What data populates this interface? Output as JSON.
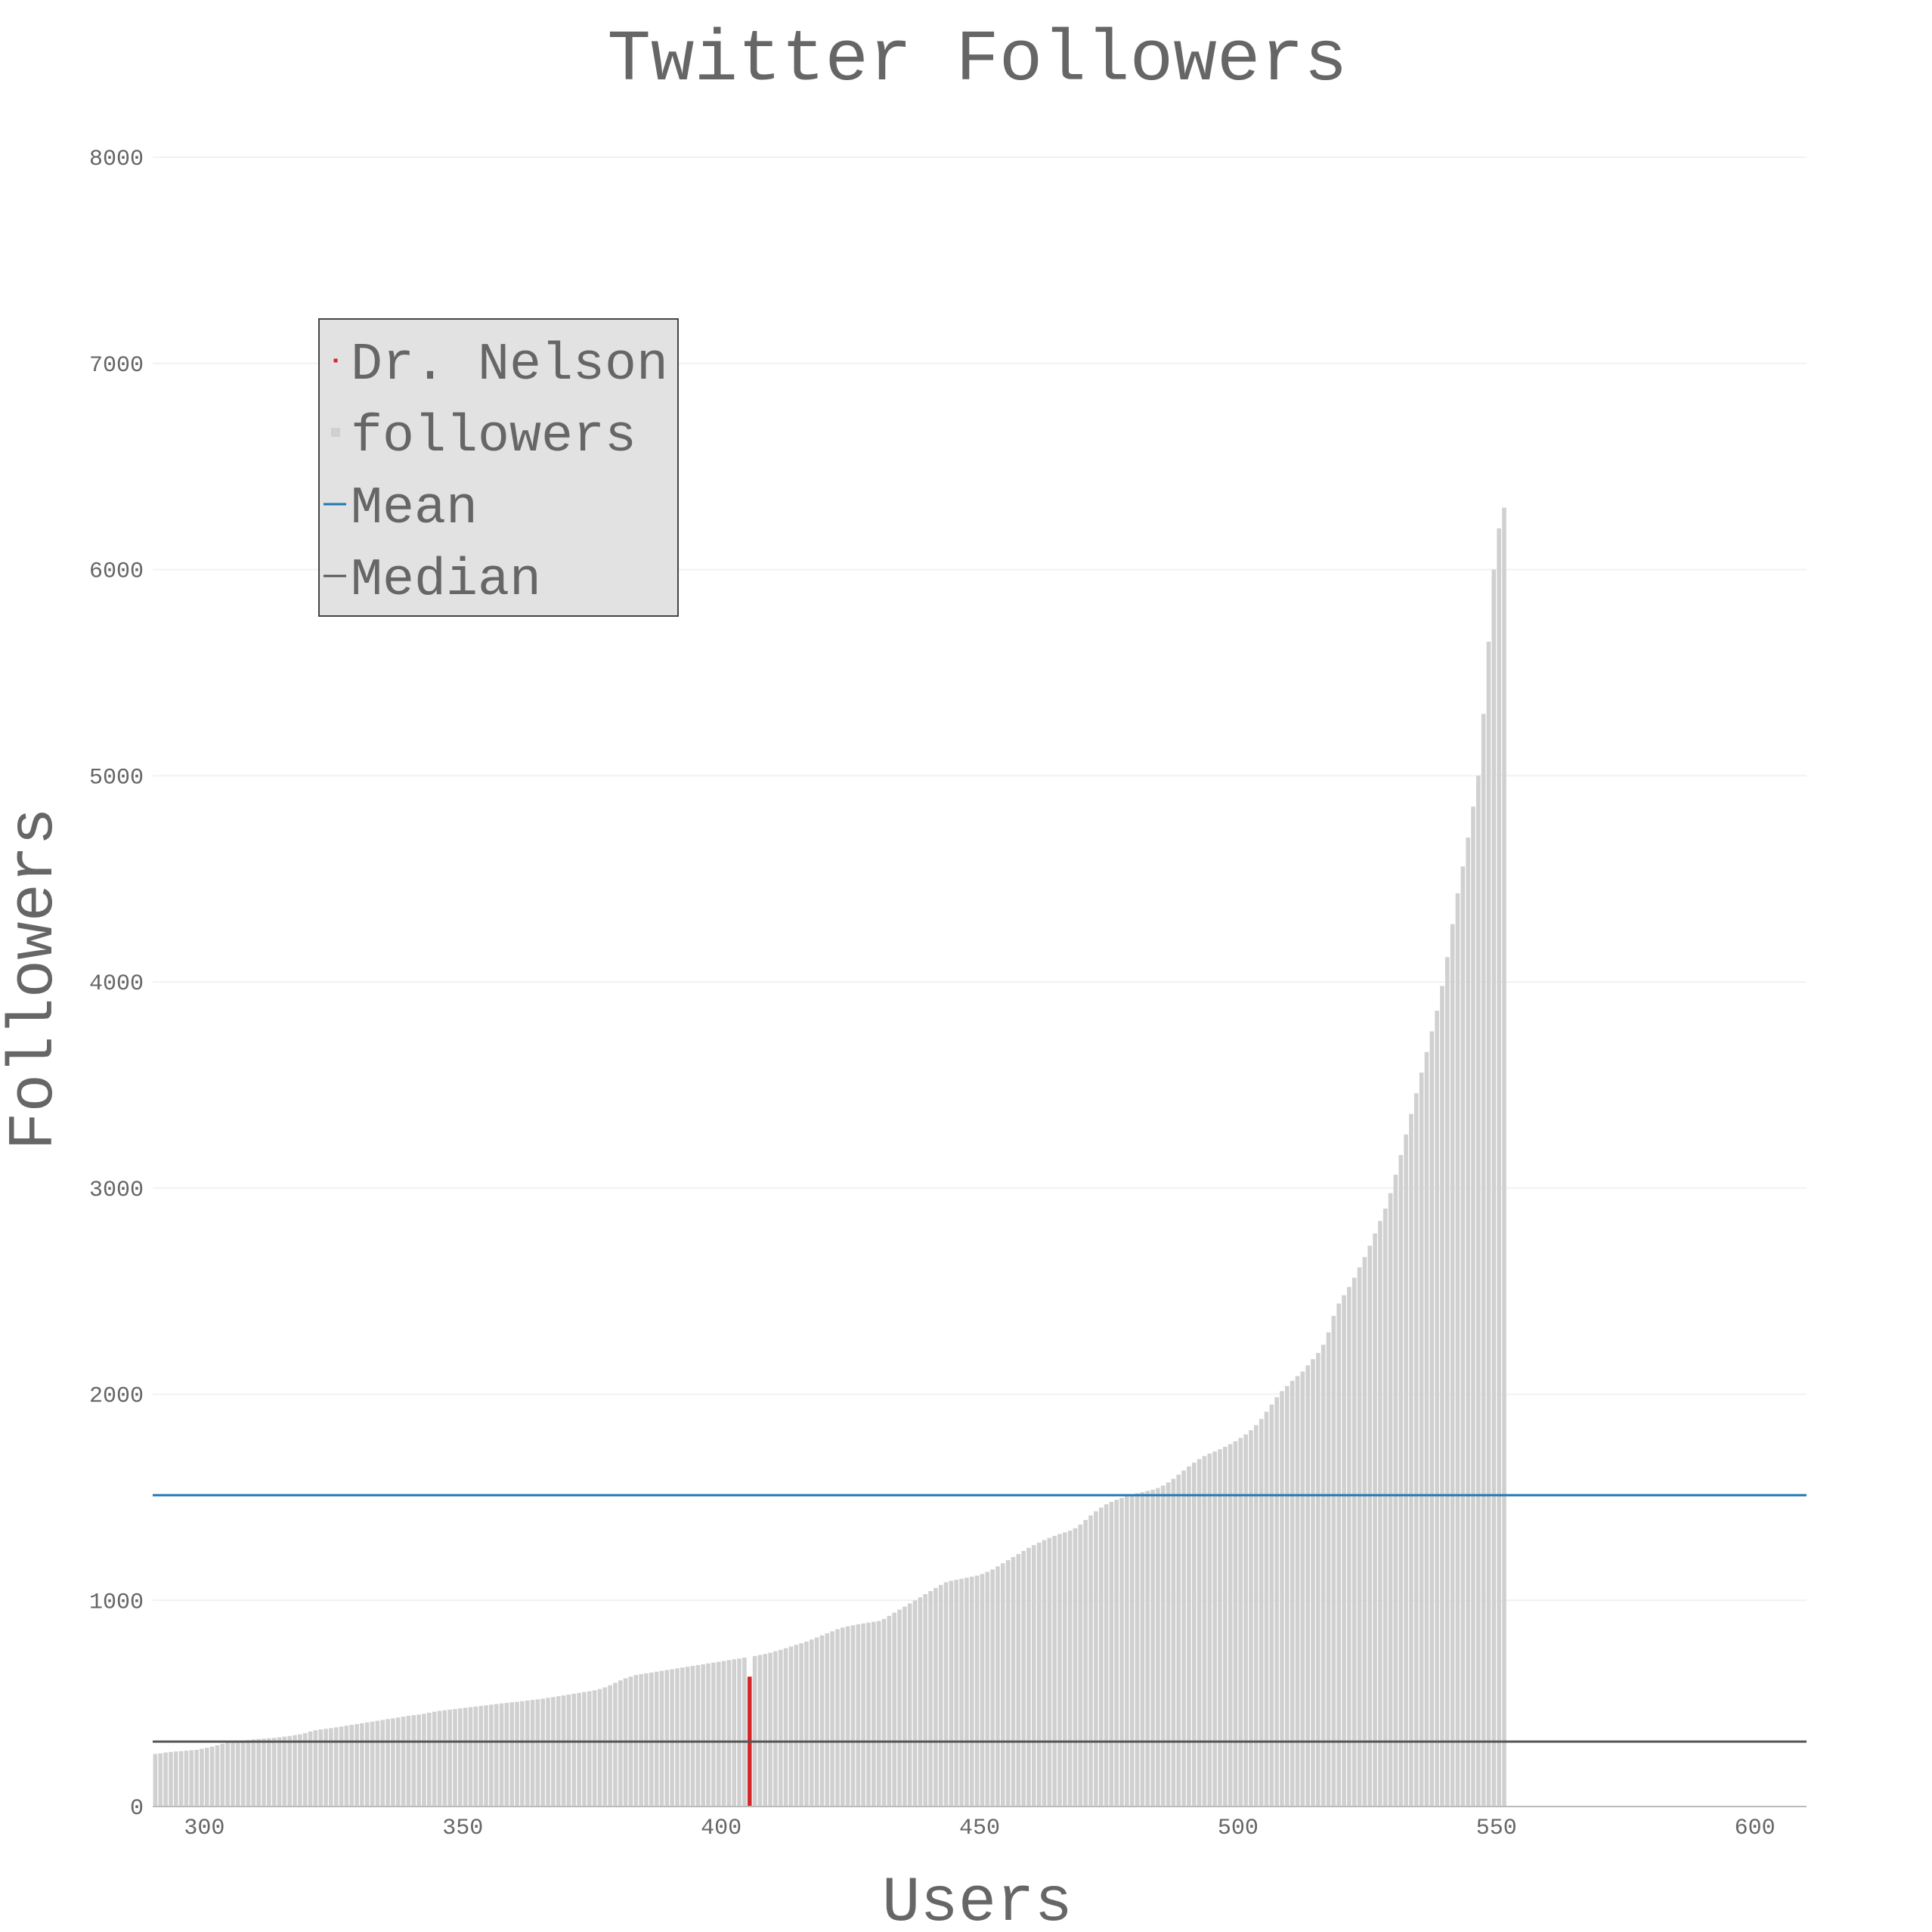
{
  "chart_data": {
    "type": "bar",
    "title": "Twitter Followers",
    "xlabel": "Users",
    "ylabel": "Followers",
    "xlim": [
      290,
      610
    ],
    "ylim": [
      0,
      8000
    ],
    "x_ticks": [
      300,
      350,
      400,
      450,
      500,
      550,
      600
    ],
    "y_ticks": [
      0,
      1000,
      2000,
      3000,
      4000,
      5000,
      6000,
      7000,
      8000
    ],
    "grid": true,
    "legend_position": "top-left",
    "legend": [
      {
        "key": "highlight",
        "label": "Dr. Nelson",
        "marker": "square",
        "color": "#d62728"
      },
      {
        "key": "bars",
        "label": "followers",
        "marker": "square",
        "color": "#d0d0d0"
      },
      {
        "key": "mean",
        "label": "Mean",
        "marker": "line",
        "color": "#1f77b4"
      },
      {
        "key": "median",
        "label": "Median",
        "marker": "line",
        "color": "#555555"
      }
    ],
    "mean": 1510,
    "median": 315,
    "highlight": {
      "x": 405,
      "y": 630,
      "color": "#d62728"
    },
    "series": [
      {
        "name": "followers",
        "color": "#d0d0d0",
        "x_start": 290,
        "values": [
          255,
          258,
          262,
          265,
          267,
          269,
          271,
          273,
          275,
          280,
          285,
          290,
          297,
          305,
          310,
          313,
          316,
          319,
          322,
          325,
          327,
          329,
          331,
          333,
          336,
          339,
          342,
          346,
          350,
          356,
          364,
          370,
          374,
          377,
          380,
          384,
          388,
          392,
          396,
          400,
          404,
          408,
          412,
          416,
          420,
          424,
          428,
          432,
          436,
          440,
          443,
          446,
          450,
          455,
          460,
          464,
          467,
          470,
          473,
          476,
          479,
          482,
          485,
          488,
          491,
          494,
          497,
          500,
          503,
          506,
          508,
          511,
          514,
          517,
          520,
          523,
          527,
          531,
          535,
          539,
          543,
          547,
          551,
          555,
          559,
          564,
          570,
          578,
          588,
          600,
          612,
          622,
          630,
          638,
          642,
          646,
          650,
          654,
          658,
          662,
          666,
          670,
          674,
          678,
          682,
          686,
          690,
          694,
          698,
          702,
          706,
          710,
          714,
          718,
          722,
          726,
          730,
          735,
          740,
          746,
          753,
          760,
          768,
          776,
          784,
          792,
          800,
          810,
          820,
          830,
          840,
          850,
          860,
          868,
          874,
          879,
          884,
          888,
          892,
          896,
          900,
          910,
          925,
          940,
          955,
          970,
          985,
          1000,
          1015,
          1030,
          1045,
          1060,
          1075,
          1088,
          1095,
          1100,
          1105,
          1110,
          1115,
          1120,
          1128,
          1138,
          1150,
          1165,
          1180,
          1195,
          1210,
          1225,
          1240,
          1255,
          1268,
          1280,
          1292,
          1303,
          1313,
          1322,
          1330,
          1338,
          1350,
          1368,
          1390,
          1412,
          1432,
          1450,
          1466,
          1478,
          1488,
          1497,
          1505,
          1512,
          1519,
          1525,
          1531,
          1537,
          1545,
          1557,
          1572,
          1590,
          1610,
          1630,
          1650,
          1668,
          1685,
          1700,
          1712,
          1722,
          1733,
          1745,
          1758,
          1772,
          1788,
          1805,
          1825,
          1850,
          1880,
          1915,
          1950,
          1985,
          2015,
          2040,
          2065,
          2088,
          2110,
          2140,
          2170,
          2200,
          2240,
          2300,
          2380,
          2440,
          2480,
          2520,
          2565,
          2615,
          2665,
          2720,
          2780,
          2840,
          2900,
          2975,
          3065,
          3160,
          3260,
          3360,
          3460,
          3560,
          3660,
          3760,
          3860,
          3980,
          4120,
          4280,
          4430,
          4560,
          4700,
          4850,
          5000,
          5300,
          5650,
          6000,
          6200,
          6300
        ]
      }
    ]
  }
}
